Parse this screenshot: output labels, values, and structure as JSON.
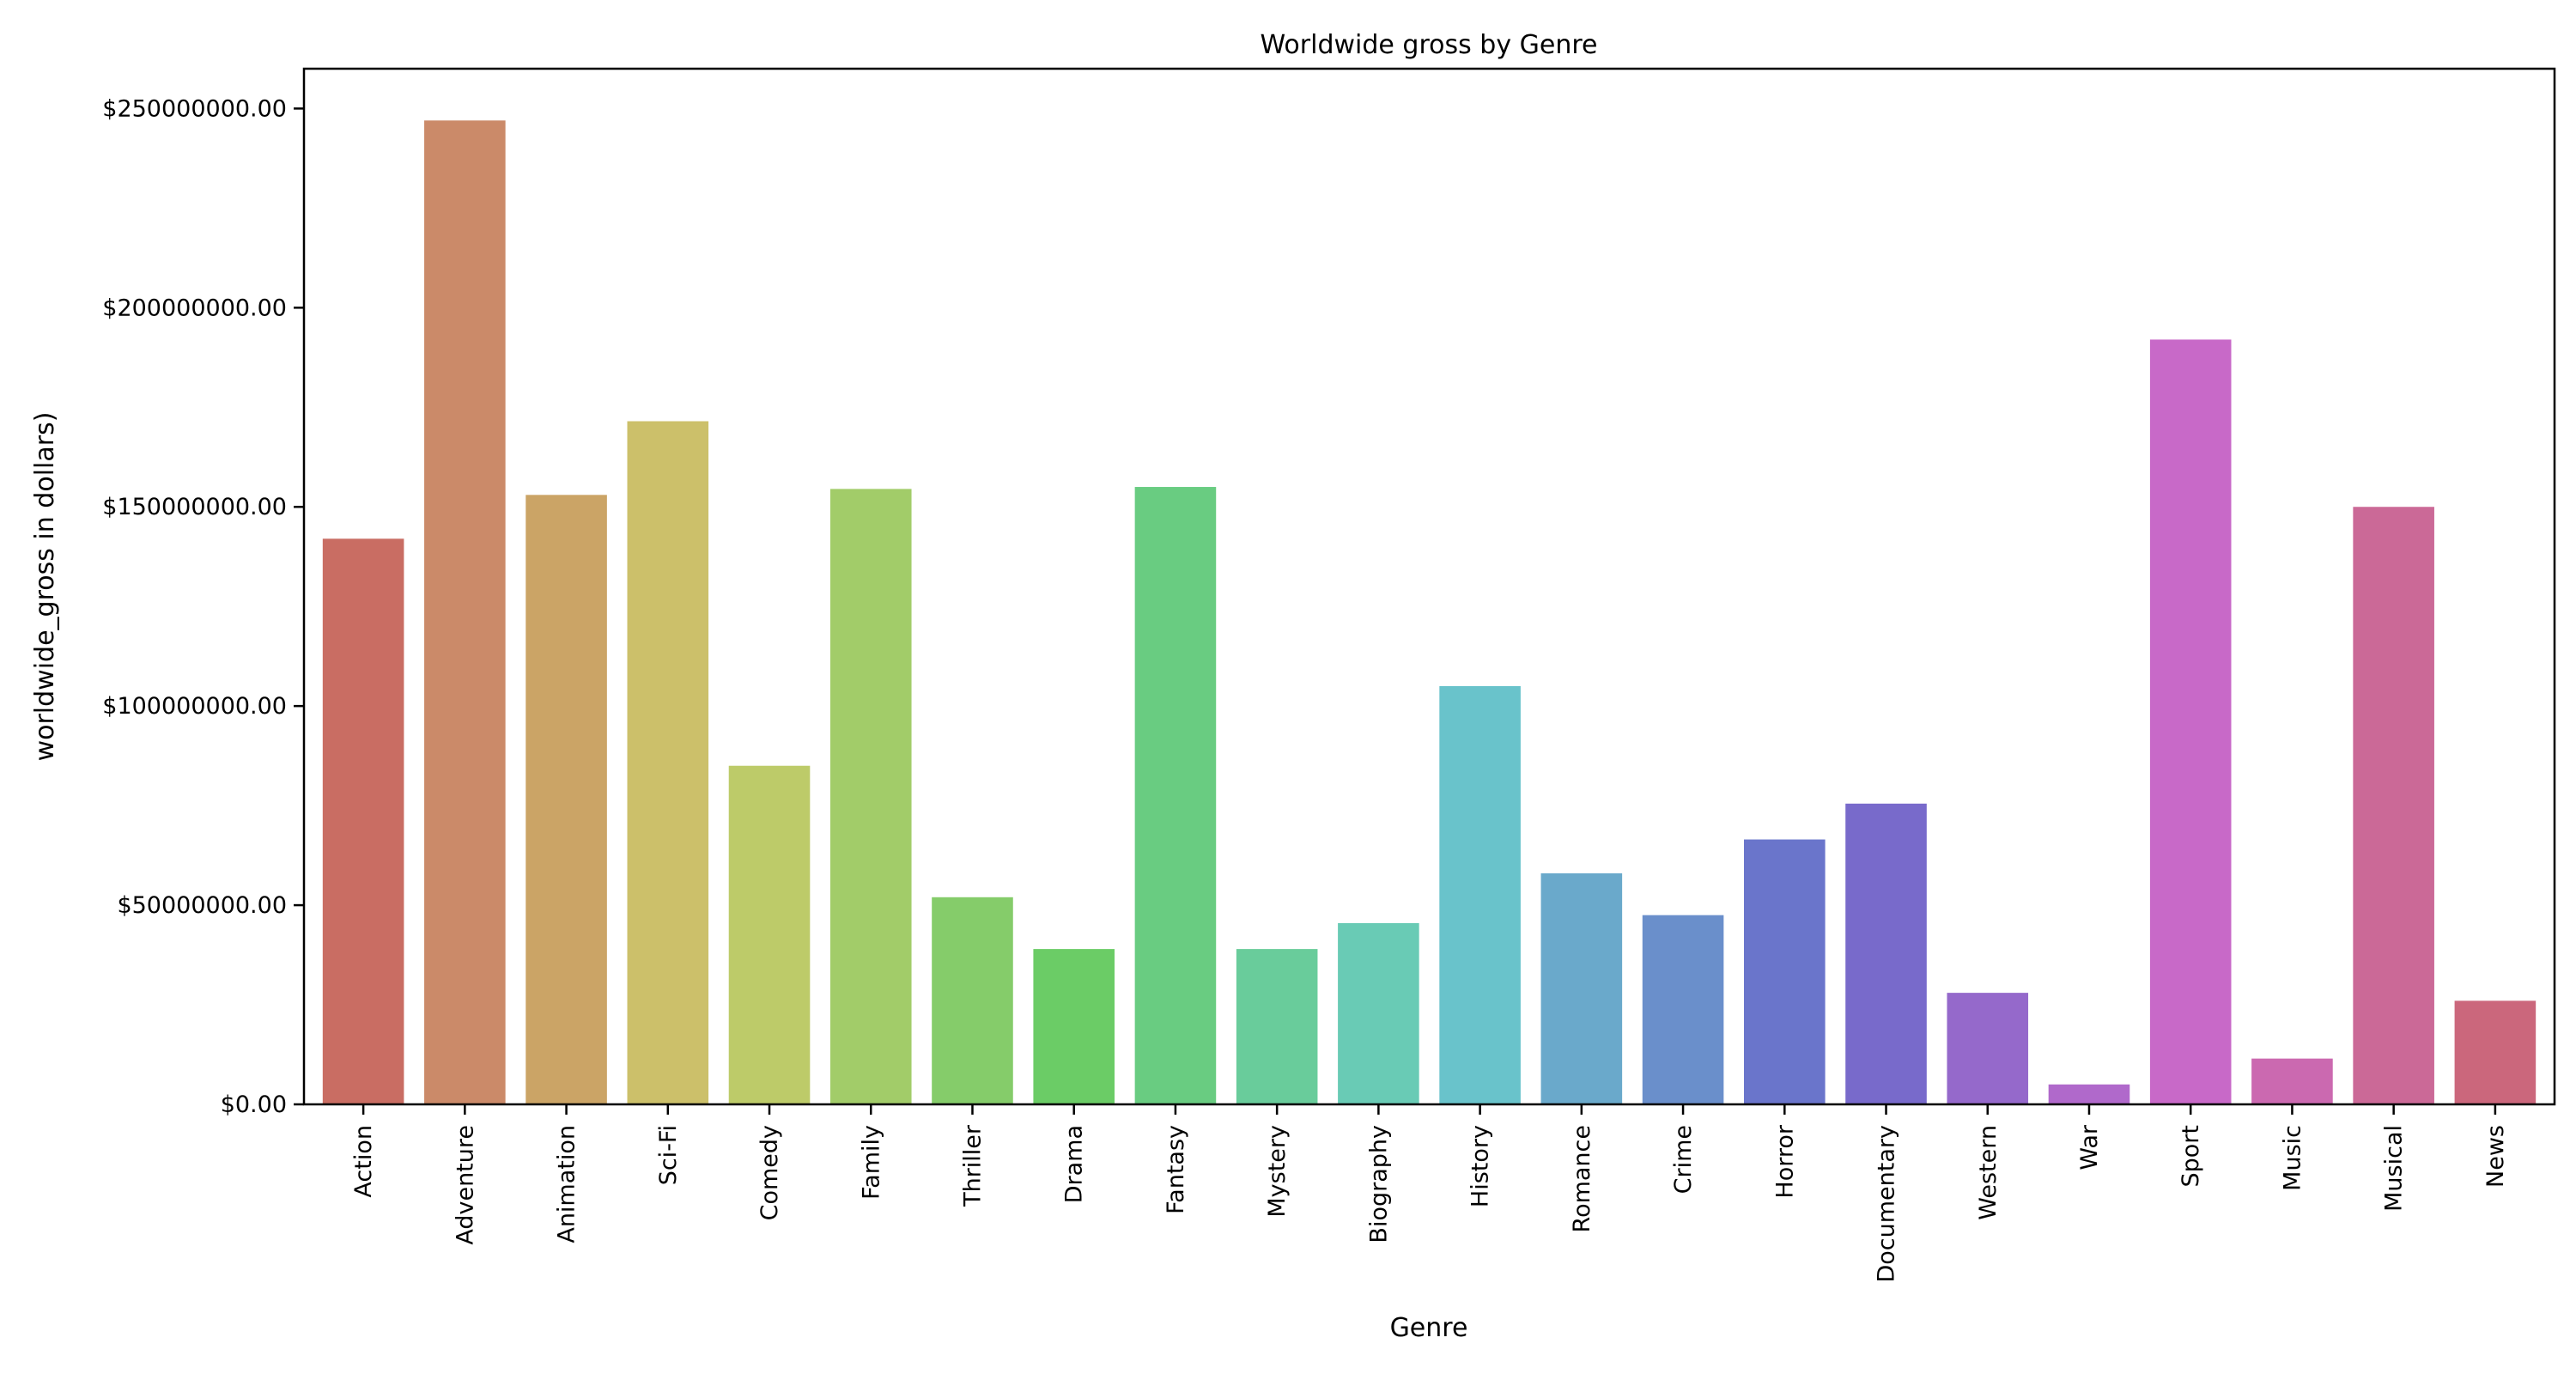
{
  "chart_data": {
    "type": "bar",
    "title": "Worldwide gross by Genre",
    "xlabel": "Genre",
    "ylabel": "worldwide_gross in dollars)",
    "ylim": [
      0,
      260000000
    ],
    "yticks": [
      0,
      50000000,
      100000000,
      150000000,
      200000000,
      250000000
    ],
    "ytick_labels": [
      "$0.00",
      "$50000000.00",
      "$100000000.00",
      "$150000000.00",
      "$200000000.00",
      "$250000000.00"
    ],
    "grid": false,
    "categories": [
      "Action",
      "Adventure",
      "Animation",
      "Sci-Fi",
      "Comedy",
      "Family",
      "Thriller",
      "Drama",
      "Fantasy",
      "Mystery",
      "Biography",
      "History",
      "Romance",
      "Crime",
      "Horror",
      "Documentary",
      "Western",
      "War",
      "Sport",
      "Music",
      "Musical",
      "News"
    ],
    "values": [
      142000000,
      247000000,
      153000000,
      171500000,
      85000000,
      154500000,
      52000000,
      39000000,
      155000000,
      39000000,
      45500000,
      105000000,
      58000000,
      47500000,
      66500000,
      75500000,
      28000000,
      5000000,
      192000000,
      11500000,
      150000000,
      26000000
    ],
    "colors": [
      "#c96d63",
      "#cb8a69",
      "#cba466",
      "#ccc06a",
      "#bdcb69",
      "#a2cc69",
      "#85cc6a",
      "#6bcc66",
      "#69cc81",
      "#69cc9b",
      "#69cbb5",
      "#69c3cb",
      "#6aa9cb",
      "#6a8fcb",
      "#6a75cb",
      "#786acb",
      "#9569cb",
      "#b069cb",
      "#c869c8",
      "#cb69b0",
      "#cb6997",
      "#cb677c"
    ]
  }
}
